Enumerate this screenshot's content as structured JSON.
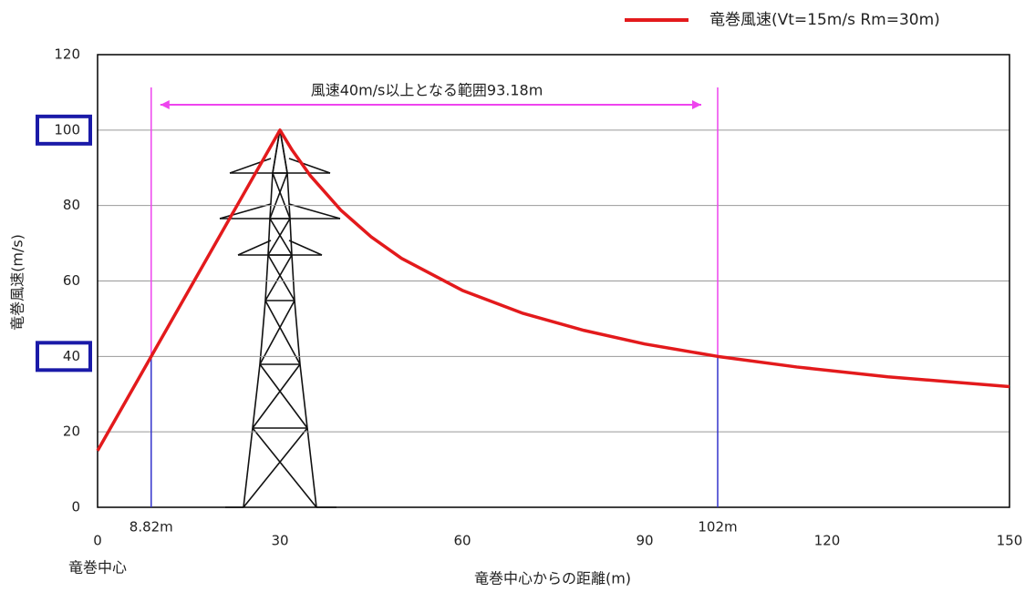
{
  "chart_data": {
    "type": "line",
    "title": null,
    "legend_label": "竜巻風速(Vt=15m/s  Rm=30m)",
    "annotation": "風速40m/s以上となる範囲93.18m",
    "center_label": "竜巻中心",
    "xlabel": "竜巻中心からの距離(m)",
    "ylabel": "竜巻風速(m/s)",
    "xlim": [
      0,
      150
    ],
    "xticks": [
      0,
      30,
      60,
      90,
      120,
      150
    ],
    "ylim": [
      0,
      120
    ],
    "yticks": [
      0,
      20,
      40,
      60,
      80,
      100,
      120
    ],
    "grid": true,
    "highlighted_yticks": [
      40,
      100
    ],
    "highlight_color": "#1a1aa8",
    "series": [
      {
        "name": "竜巻風速(Vt=15m/s  Rm=30m)",
        "color": "#e31a1c",
        "x": [
          0,
          8.82,
          30,
          32,
          35,
          40,
          45,
          50,
          60,
          70,
          80,
          90,
          102,
          115,
          130,
          150
        ],
        "values": [
          15,
          40,
          100,
          94.7,
          87.9,
          78.8,
          71.7,
          66,
          57.5,
          51.4,
          46.9,
          43.3,
          40,
          37.2,
          34.6,
          32
        ]
      }
    ],
    "markers": [
      {
        "x": 8.82,
        "y": 40,
        "label": "8.82m"
      },
      {
        "x": 102,
        "y": 40,
        "label": "102m"
      }
    ],
    "marker_colors": {
      "below": "#3333cc",
      "above": "#ee44ee"
    }
  }
}
